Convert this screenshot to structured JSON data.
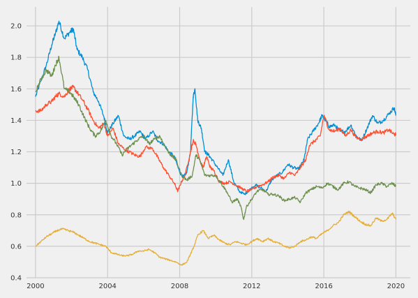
{
  "chart_data": {
    "type": "line",
    "title": "",
    "xlabel": "",
    "ylabel": "",
    "xlim": [
      1999.5,
      2020.8
    ],
    "ylim": [
      0.4,
      2.12
    ],
    "grid": true,
    "legend": "none",
    "x_ticks": [
      2000,
      2004,
      2008,
      2012,
      2016,
      2020
    ],
    "x_tick_labels": [
      "2000",
      "2004",
      "2008",
      "2012",
      "2016",
      "2020"
    ],
    "y_ticks": [
      0.4,
      0.6,
      0.8,
      1.0,
      1.2,
      1.4,
      1.6,
      1.8,
      2.0
    ],
    "y_tick_labels": [
      "0.4",
      "0.6",
      "0.8",
      "1.0",
      "1.2",
      "1.4",
      "1.6",
      "1.8",
      "2.0"
    ],
    "colors": {
      "background": "#f0f0f0",
      "grid": "#cbcbcb",
      "series": [
        "#008fd5",
        "#fc4f30",
        "#6d904f",
        "#e5ae38"
      ]
    },
    "series": [
      {
        "x": [
          2000.0,
          2000.3,
          2000.6,
          2000.9,
          2001.1,
          2001.3,
          2001.6,
          2001.9,
          2002.1,
          2002.3,
          2002.6,
          2002.9,
          2003.2,
          2003.5,
          2003.8,
          2004.0,
          2004.3,
          2004.6,
          2004.9,
          2005.2,
          2005.5,
          2005.8,
          2006.1,
          2006.5,
          2006.8,
          2007.1,
          2007.4,
          2007.7,
          2008.0,
          2008.2,
          2008.4,
          2008.6,
          2008.75,
          2008.85,
          2009.0,
          2009.2,
          2009.4,
          2009.6,
          2009.8,
          2010.1,
          2010.4,
          2010.7,
          2011.0,
          2011.3,
          2011.6,
          2011.9,
          2012.2,
          2012.5,
          2012.8,
          2013.1,
          2013.4,
          2013.7,
          2014.0,
          2014.3,
          2014.6,
          2014.9,
          2015.1,
          2015.4,
          2015.7,
          2015.9,
          2016.1,
          2016.3,
          2016.6,
          2016.9,
          2017.2,
          2017.5,
          2017.8,
          2018.1,
          2018.4,
          2018.7,
          2019.0,
          2019.3,
          2019.6,
          2019.9,
          2020.0
        ],
        "values": [
          1.55,
          1.65,
          1.75,
          1.88,
          1.95,
          2.03,
          1.92,
          1.96,
          1.98,
          1.85,
          1.8,
          1.72,
          1.58,
          1.52,
          1.42,
          1.32,
          1.38,
          1.43,
          1.3,
          1.28,
          1.3,
          1.33,
          1.28,
          1.33,
          1.27,
          1.25,
          1.2,
          1.17,
          1.07,
          1.04,
          1.07,
          1.2,
          1.55,
          1.6,
          1.4,
          1.35,
          1.2,
          1.18,
          1.15,
          1.1,
          1.05,
          1.15,
          1.01,
          0.95,
          0.93,
          0.96,
          0.99,
          0.97,
          0.95,
          1.02,
          1.05,
          1.07,
          1.12,
          1.1,
          1.09,
          1.15,
          1.28,
          1.33,
          1.38,
          1.43,
          1.4,
          1.36,
          1.37,
          1.33,
          1.33,
          1.37,
          1.3,
          1.27,
          1.35,
          1.43,
          1.38,
          1.4,
          1.44,
          1.48,
          1.43
        ]
      },
      {
        "x": [
          2000.0,
          2000.3,
          2000.6,
          2000.9,
          2001.1,
          2001.3,
          2001.6,
          2001.9,
          2002.1,
          2002.3,
          2002.6,
          2002.9,
          2003.2,
          2003.5,
          2003.8,
          2004.0,
          2004.3,
          2004.6,
          2004.9,
          2005.2,
          2005.5,
          2005.8,
          2006.1,
          2006.5,
          2006.8,
          2007.1,
          2007.4,
          2007.7,
          2007.9,
          2008.1,
          2008.3,
          2008.6,
          2008.75,
          2008.9,
          2009.1,
          2009.3,
          2009.5,
          2009.7,
          2009.9,
          2010.2,
          2010.5,
          2010.8,
          2011.1,
          2011.4,
          2011.7,
          2012.0,
          2012.3,
          2012.6,
          2012.9,
          2013.2,
          2013.5,
          2013.8,
          2014.1,
          2014.4,
          2014.7,
          2015.0,
          2015.2,
          2015.5,
          2015.8,
          2016.0,
          2016.3,
          2016.6,
          2016.9,
          2017.2,
          2017.5,
          2017.8,
          2018.1,
          2018.4,
          2018.7,
          2019.0,
          2019.3,
          2019.6,
          2019.9,
          2020.0
        ],
        "values": [
          1.46,
          1.46,
          1.5,
          1.52,
          1.55,
          1.57,
          1.55,
          1.6,
          1.61,
          1.58,
          1.53,
          1.47,
          1.4,
          1.35,
          1.38,
          1.3,
          1.35,
          1.25,
          1.22,
          1.2,
          1.18,
          1.17,
          1.23,
          1.22,
          1.16,
          1.1,
          1.05,
          1.0,
          0.95,
          1.01,
          1.05,
          1.2,
          1.27,
          1.25,
          1.15,
          1.1,
          1.17,
          1.1,
          1.08,
          1.01,
          1.0,
          1.01,
          0.99,
          0.97,
          0.95,
          0.96,
          0.98,
          0.99,
          1.01,
          1.04,
          1.05,
          1.03,
          1.07,
          1.05,
          1.1,
          1.15,
          1.24,
          1.27,
          1.3,
          1.43,
          1.34,
          1.33,
          1.35,
          1.3,
          1.34,
          1.29,
          1.28,
          1.3,
          1.32,
          1.33,
          1.32,
          1.34,
          1.31,
          1.31
        ]
      },
      {
        "x": [
          2000.0,
          2000.3,
          2000.6,
          2000.9,
          2001.1,
          2001.3,
          2001.6,
          2001.9,
          2002.1,
          2002.4,
          2002.7,
          2003.0,
          2003.3,
          2003.6,
          2003.9,
          2004.2,
          2004.5,
          2004.8,
          2005.1,
          2005.4,
          2005.7,
          2006.0,
          2006.3,
          2006.6,
          2006.9,
          2007.2,
          2007.5,
          2007.8,
          2008.1,
          2008.4,
          2008.7,
          2008.9,
          2009.1,
          2009.4,
          2009.7,
          2010.0,
          2010.3,
          2010.6,
          2010.9,
          2011.2,
          2011.4,
          2011.55,
          2011.7,
          2012.0,
          2012.3,
          2012.6,
          2012.9,
          2013.2,
          2013.5,
          2013.8,
          2014.1,
          2014.4,
          2014.7,
          2015.0,
          2015.3,
          2015.6,
          2015.9,
          2016.2,
          2016.5,
          2016.8,
          2017.1,
          2017.4,
          2017.7,
          2018.0,
          2018.3,
          2018.6,
          2018.9,
          2019.2,
          2019.5,
          2019.8,
          2020.0
        ],
        "values": [
          1.58,
          1.66,
          1.72,
          1.68,
          1.75,
          1.8,
          1.6,
          1.58,
          1.55,
          1.5,
          1.42,
          1.35,
          1.3,
          1.33,
          1.4,
          1.3,
          1.25,
          1.18,
          1.22,
          1.25,
          1.28,
          1.3,
          1.25,
          1.28,
          1.3,
          1.23,
          1.18,
          1.15,
          1.05,
          1.02,
          1.05,
          1.18,
          1.15,
          1.05,
          1.05,
          1.05,
          1.0,
          0.95,
          0.88,
          0.9,
          0.85,
          0.77,
          0.85,
          0.9,
          0.95,
          0.96,
          0.93,
          0.93,
          0.92,
          0.89,
          0.9,
          0.91,
          0.88,
          0.94,
          0.96,
          0.98,
          0.97,
          1.0,
          0.98,
          0.96,
          1.0,
          1.01,
          0.98,
          0.97,
          0.96,
          0.94,
          0.99,
          1.0,
          0.98,
          1.0,
          0.98
        ]
      },
      {
        "x": [
          2000.0,
          2000.3,
          2000.6,
          2000.9,
          2001.2,
          2001.5,
          2001.8,
          2002.1,
          2002.4,
          2002.7,
          2003.0,
          2003.3,
          2003.6,
          2003.9,
          2004.2,
          2004.5,
          2004.8,
          2005.1,
          2005.4,
          2005.7,
          2006.0,
          2006.3,
          2006.6,
          2006.9,
          2007.2,
          2007.5,
          2007.8,
          2008.1,
          2008.4,
          2008.6,
          2008.8,
          2009.0,
          2009.3,
          2009.6,
          2009.9,
          2010.2,
          2010.5,
          2010.8,
          2011.1,
          2011.4,
          2011.7,
          2012.0,
          2012.3,
          2012.6,
          2012.9,
          2013.2,
          2013.5,
          2013.8,
          2014.1,
          2014.4,
          2014.7,
          2015.0,
          2015.3,
          2015.6,
          2015.9,
          2016.2,
          2016.5,
          2016.8,
          2017.1,
          2017.4,
          2017.7,
          2018.0,
          2018.3,
          2018.6,
          2018.9,
          2019.2,
          2019.5,
          2019.8,
          2020.0
        ],
        "values": [
          0.6,
          0.63,
          0.66,
          0.68,
          0.7,
          0.71,
          0.7,
          0.69,
          0.67,
          0.65,
          0.63,
          0.62,
          0.61,
          0.6,
          0.56,
          0.55,
          0.54,
          0.54,
          0.55,
          0.57,
          0.57,
          0.58,
          0.56,
          0.53,
          0.52,
          0.51,
          0.5,
          0.48,
          0.5,
          0.55,
          0.6,
          0.67,
          0.7,
          0.65,
          0.67,
          0.64,
          0.62,
          0.61,
          0.63,
          0.62,
          0.61,
          0.63,
          0.65,
          0.63,
          0.65,
          0.63,
          0.62,
          0.6,
          0.59,
          0.6,
          0.63,
          0.64,
          0.66,
          0.65,
          0.68,
          0.7,
          0.73,
          0.75,
          0.8,
          0.82,
          0.79,
          0.76,
          0.74,
          0.73,
          0.78,
          0.76,
          0.77,
          0.81,
          0.77
        ]
      }
    ]
  }
}
